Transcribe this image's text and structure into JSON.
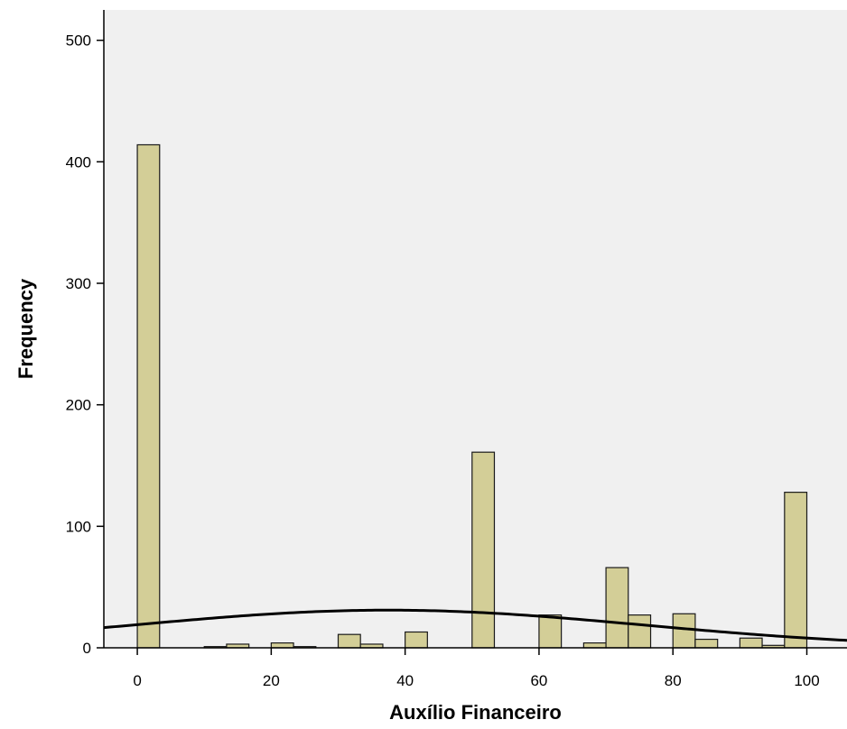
{
  "chart_data": {
    "type": "bar",
    "subtype": "histogram",
    "xlabel": "Auxílio Financeiro",
    "ylabel": "Frequency",
    "xlim": [
      -5,
      106
    ],
    "ylim": [
      0,
      525
    ],
    "x_ticks": [
      0,
      20,
      40,
      60,
      80,
      100
    ],
    "y_ticks": [
      0,
      100,
      200,
      300,
      400,
      500
    ],
    "bin_width": 3.33,
    "bins": [
      {
        "x0": 0.0,
        "x1": 3.33,
        "count": 414
      },
      {
        "x0": 10.0,
        "x1": 13.33,
        "count": 1
      },
      {
        "x0": 13.33,
        "x1": 16.67,
        "count": 3
      },
      {
        "x0": 20.0,
        "x1": 23.33,
        "count": 4
      },
      {
        "x0": 23.33,
        "x1": 26.67,
        "count": 1
      },
      {
        "x0": 30.0,
        "x1": 33.33,
        "count": 11
      },
      {
        "x0": 33.33,
        "x1": 36.67,
        "count": 3
      },
      {
        "x0": 40.0,
        "x1": 43.33,
        "count": 13
      },
      {
        "x0": 50.0,
        "x1": 53.33,
        "count": 161
      },
      {
        "x0": 60.0,
        "x1": 63.33,
        "count": 27
      },
      {
        "x0": 66.67,
        "x1": 70.0,
        "count": 4
      },
      {
        "x0": 70.0,
        "x1": 73.33,
        "count": 66
      },
      {
        "x0": 73.33,
        "x1": 76.67,
        "count": 27
      },
      {
        "x0": 80.0,
        "x1": 83.33,
        "count": 28
      },
      {
        "x0": 83.33,
        "x1": 86.67,
        "count": 7
      },
      {
        "x0": 90.0,
        "x1": 93.33,
        "count": 8
      },
      {
        "x0": 93.33,
        "x1": 96.67,
        "count": 2
      },
      {
        "x0": 96.67,
        "x1": 100.0,
        "count": 128
      }
    ],
    "normal_curve": {
      "mean": 37.5,
      "sd": 38.0,
      "peak": 31
    },
    "grid": false,
    "colors": {
      "plot_bg": "#f0f0f0",
      "bar_fill": "#d3ce97",
      "bar_stroke": "#1a1a1a",
      "curve": "#000000"
    }
  }
}
